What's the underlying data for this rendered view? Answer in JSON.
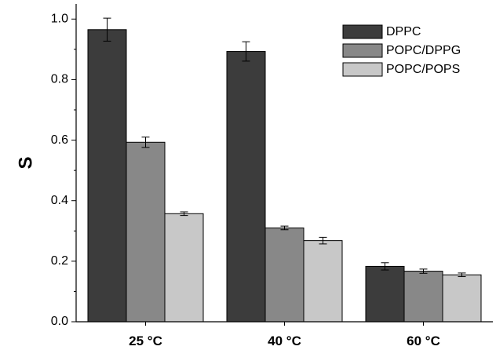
{
  "chart_data": {
    "type": "bar",
    "categories": [
      "25 °C",
      "40 °C",
      "60 °C"
    ],
    "series": [
      {
        "name": "DPPC",
        "color": "#3c3c3c",
        "values": [
          0.965,
          0.893,
          0.183
        ],
        "errors": [
          0.038,
          0.032,
          0.012
        ]
      },
      {
        "name": "POPC/DPPG",
        "color": "#888888",
        "values": [
          0.593,
          0.31,
          0.167
        ],
        "errors": [
          0.017,
          0.006,
          0.007
        ]
      },
      {
        "name": "POPC/POPS",
        "color": "#c8c8c8",
        "values": [
          0.357,
          0.268,
          0.155
        ],
        "errors": [
          0.006,
          0.011,
          0.006
        ]
      }
    ],
    "title": "",
    "xlabel": "",
    "ylabel": "S",
    "ylim": [
      0,
      1.05
    ],
    "yticks": [
      "0.0",
      "0.2",
      "0.4",
      "0.6",
      "0.8",
      "1.0"
    ],
    "legend_position": "top-right",
    "grid": false
  }
}
